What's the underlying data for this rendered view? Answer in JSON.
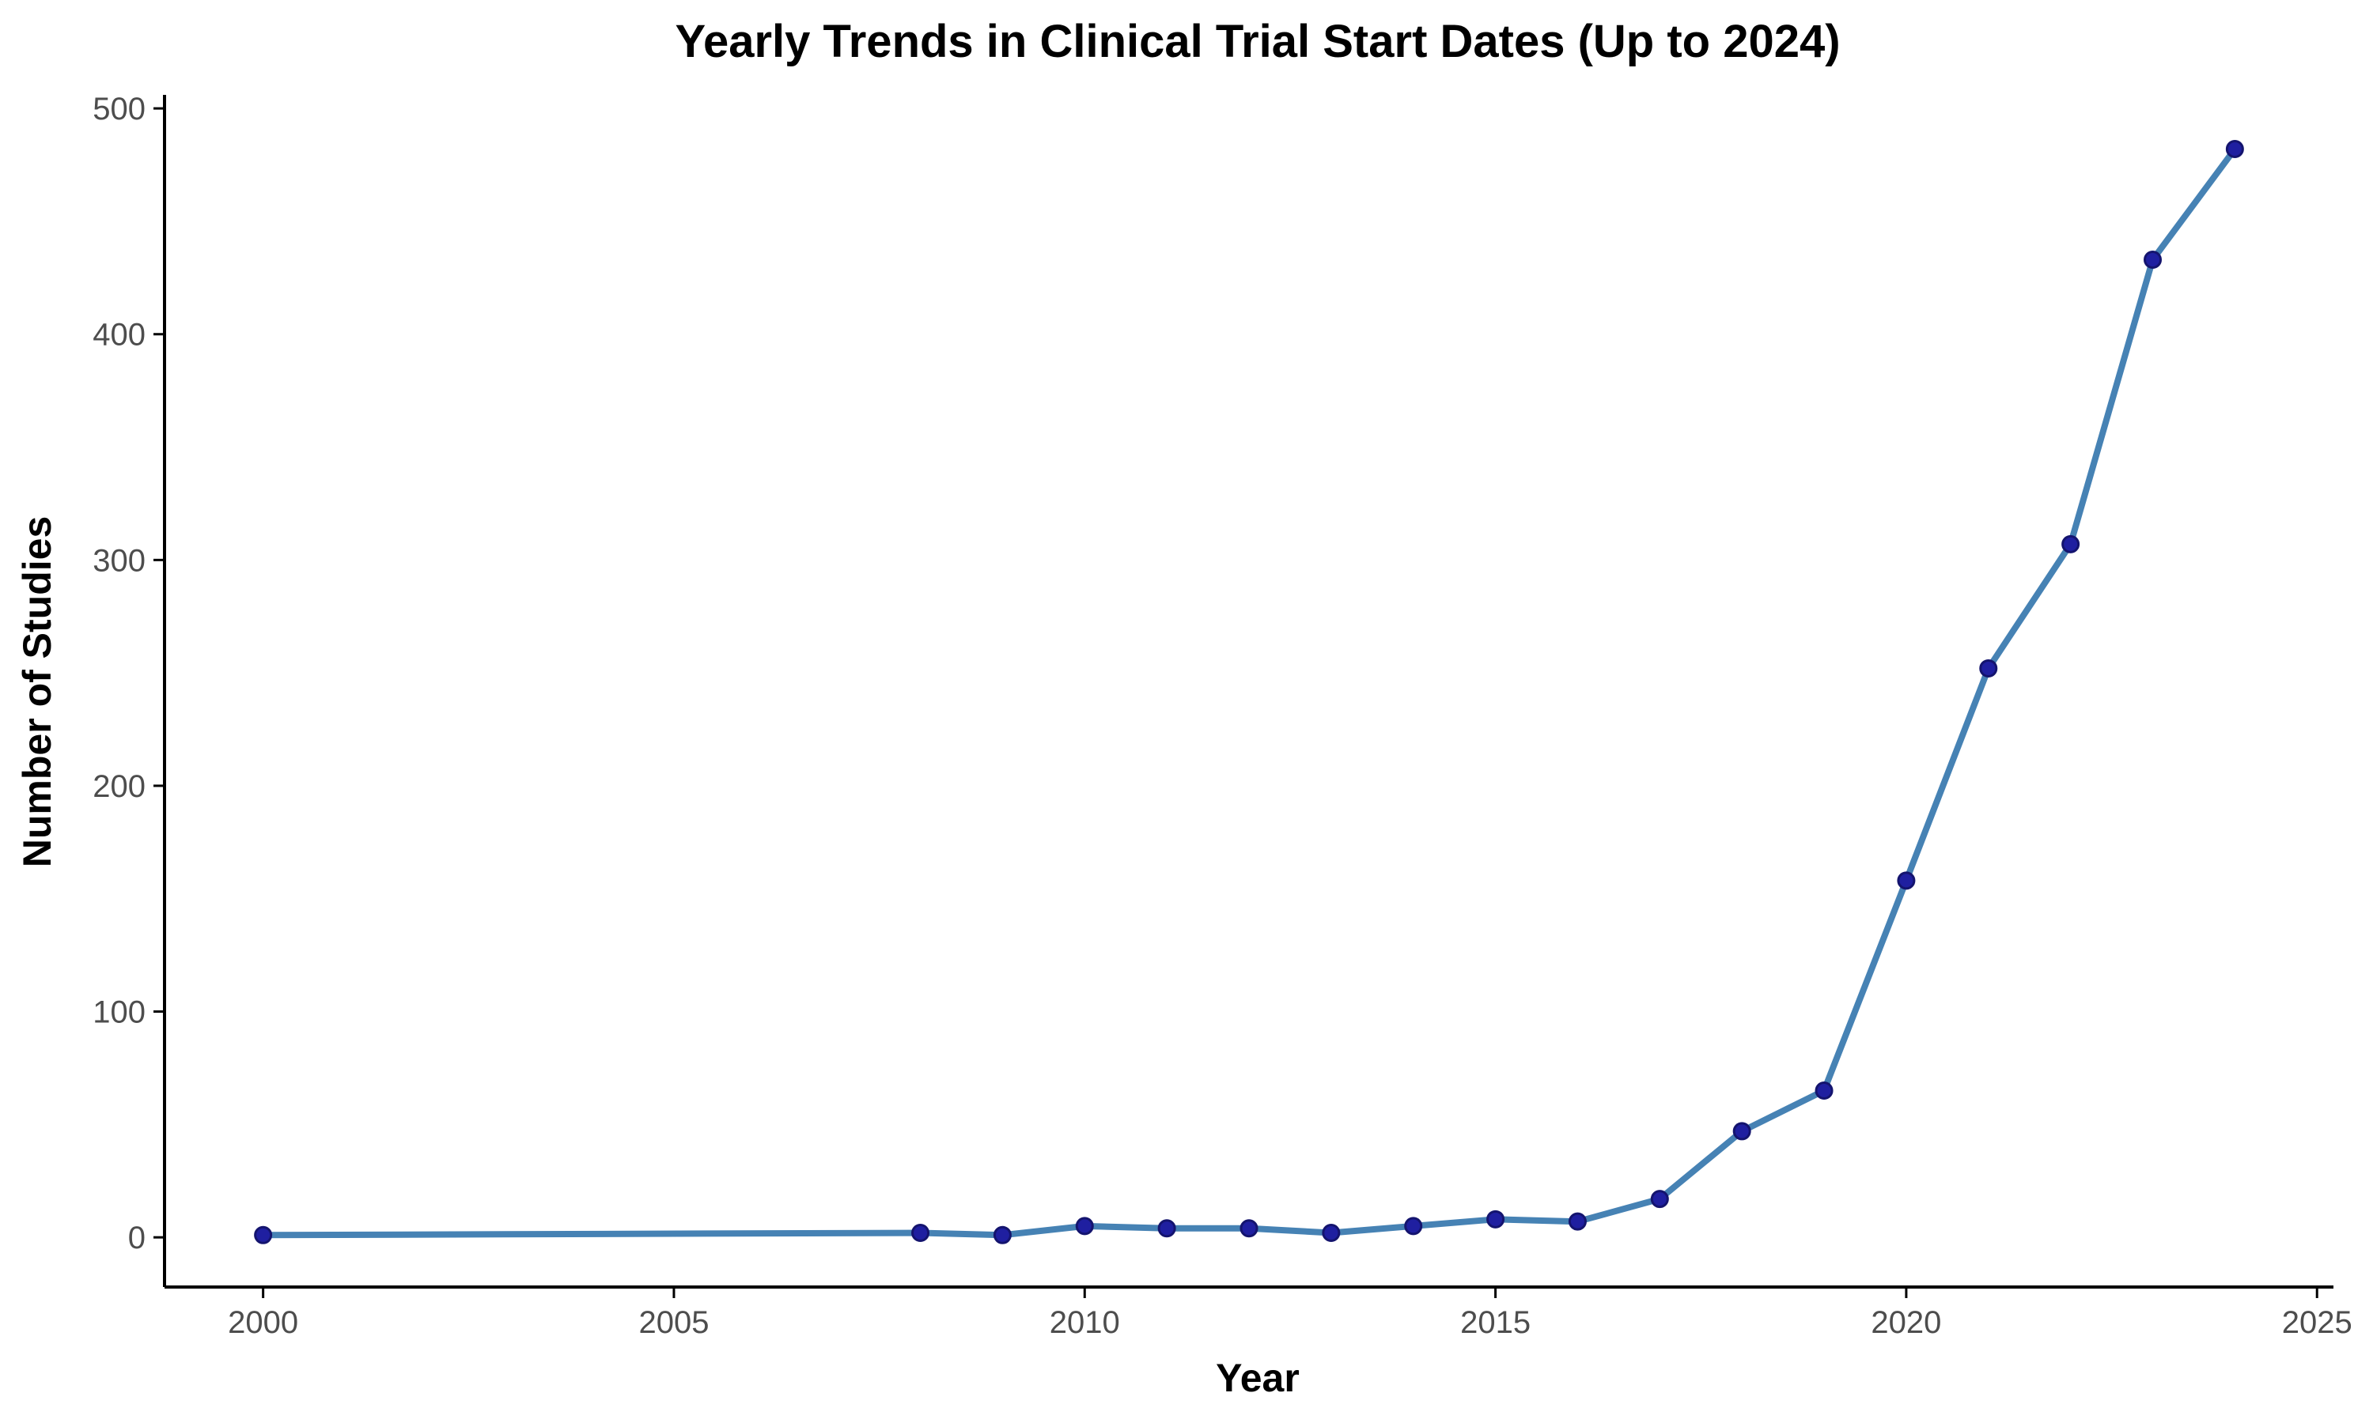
{
  "chart_data": {
    "type": "line",
    "title": "Yearly Trends in Clinical Trial Start Dates (Up to 2024)",
    "xlabel": "Year",
    "ylabel": "Number of Studies",
    "x": [
      2000,
      2008,
      2009,
      2010,
      2011,
      2012,
      2013,
      2014,
      2015,
      2016,
      2017,
      2018,
      2019,
      2020,
      2021,
      2022,
      2023,
      2024
    ],
    "series": [
      {
        "values": [
          1,
          2,
          1,
          5,
          4,
          4,
          2,
          5,
          8,
          7,
          17,
          47,
          65,
          158,
          252,
          307,
          433,
          482
        ]
      }
    ],
    "xlim": [
      1998.8,
      2025.2
    ],
    "ylim": [
      -22,
      506
    ],
    "xticks": [
      2000,
      2005,
      2010,
      2015,
      2020,
      2025
    ],
    "yticks": [
      0,
      100,
      200,
      300,
      400,
      500
    ],
    "grid": false,
    "legend": "none",
    "colors": {
      "line": "#4682B4",
      "point_fill": "#1F1FA0",
      "point_stroke": "#14146E",
      "axis": "#000000",
      "tick_label": "#4D4D4D"
    }
  }
}
